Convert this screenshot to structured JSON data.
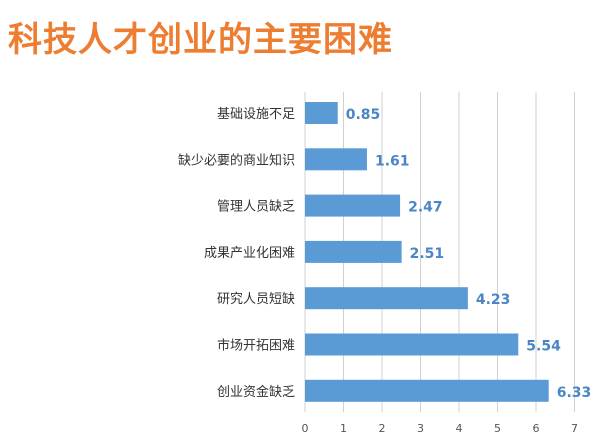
{
  "title": "科技人才创业的主要困难",
  "colors": {
    "title": "#ed7d31",
    "bar": "#5b9bd5",
    "value_label": "#4a86c5",
    "grid": "#d0d0d0"
  },
  "chart_data": {
    "type": "bar",
    "orientation": "horizontal",
    "categories": [
      "基础设施不足",
      "缺少必要的商业知识",
      "管理人员缺乏",
      "成果产业化困难",
      "研究人员短缺",
      "市场开拓困难",
      "创业资金缺乏"
    ],
    "values": [
      0.85,
      1.61,
      2.47,
      2.51,
      4.23,
      5.54,
      6.33
    ],
    "value_labels": [
      "0.85",
      "1.61",
      "2.47",
      "2.51",
      "4.23",
      "5.54",
      "6.33"
    ],
    "xticks": [
      0,
      1,
      2,
      3,
      4,
      5,
      6,
      7
    ],
    "xlim": [
      0,
      7
    ],
    "grid": "vertical",
    "xlabel": "",
    "ylabel": ""
  }
}
